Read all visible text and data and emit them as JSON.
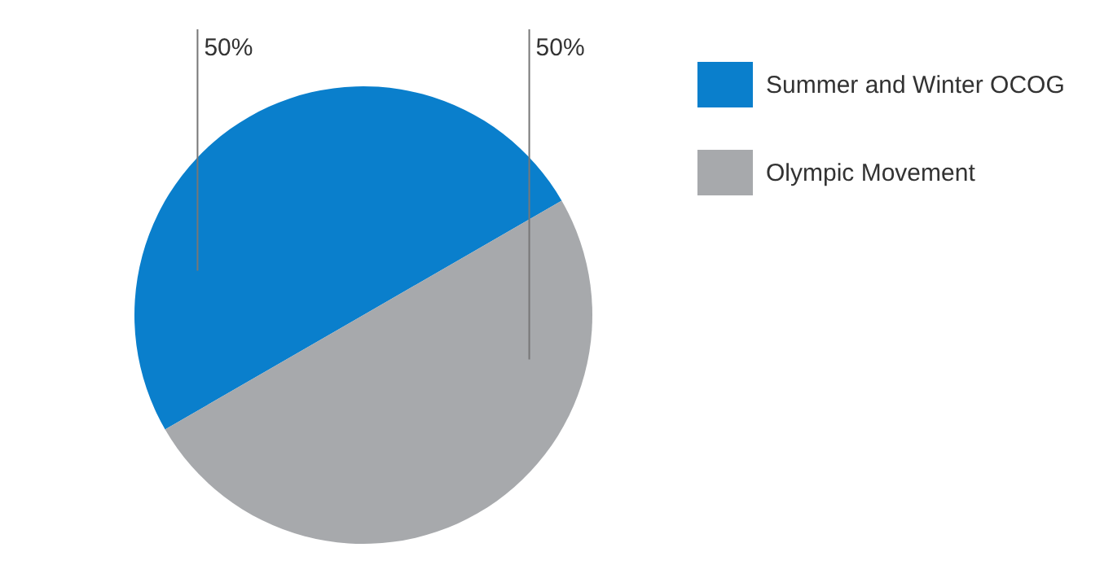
{
  "chart_data": {
    "type": "pie",
    "categories": [
      "Summer and Winter OCOG",
      "Olympic Movement"
    ],
    "values": [
      50,
      50
    ],
    "colors": [
      "#0a7fcc",
      "#a7a9ac"
    ],
    "value_labels": [
      "50%",
      "50%"
    ],
    "legend": "top right"
  }
}
